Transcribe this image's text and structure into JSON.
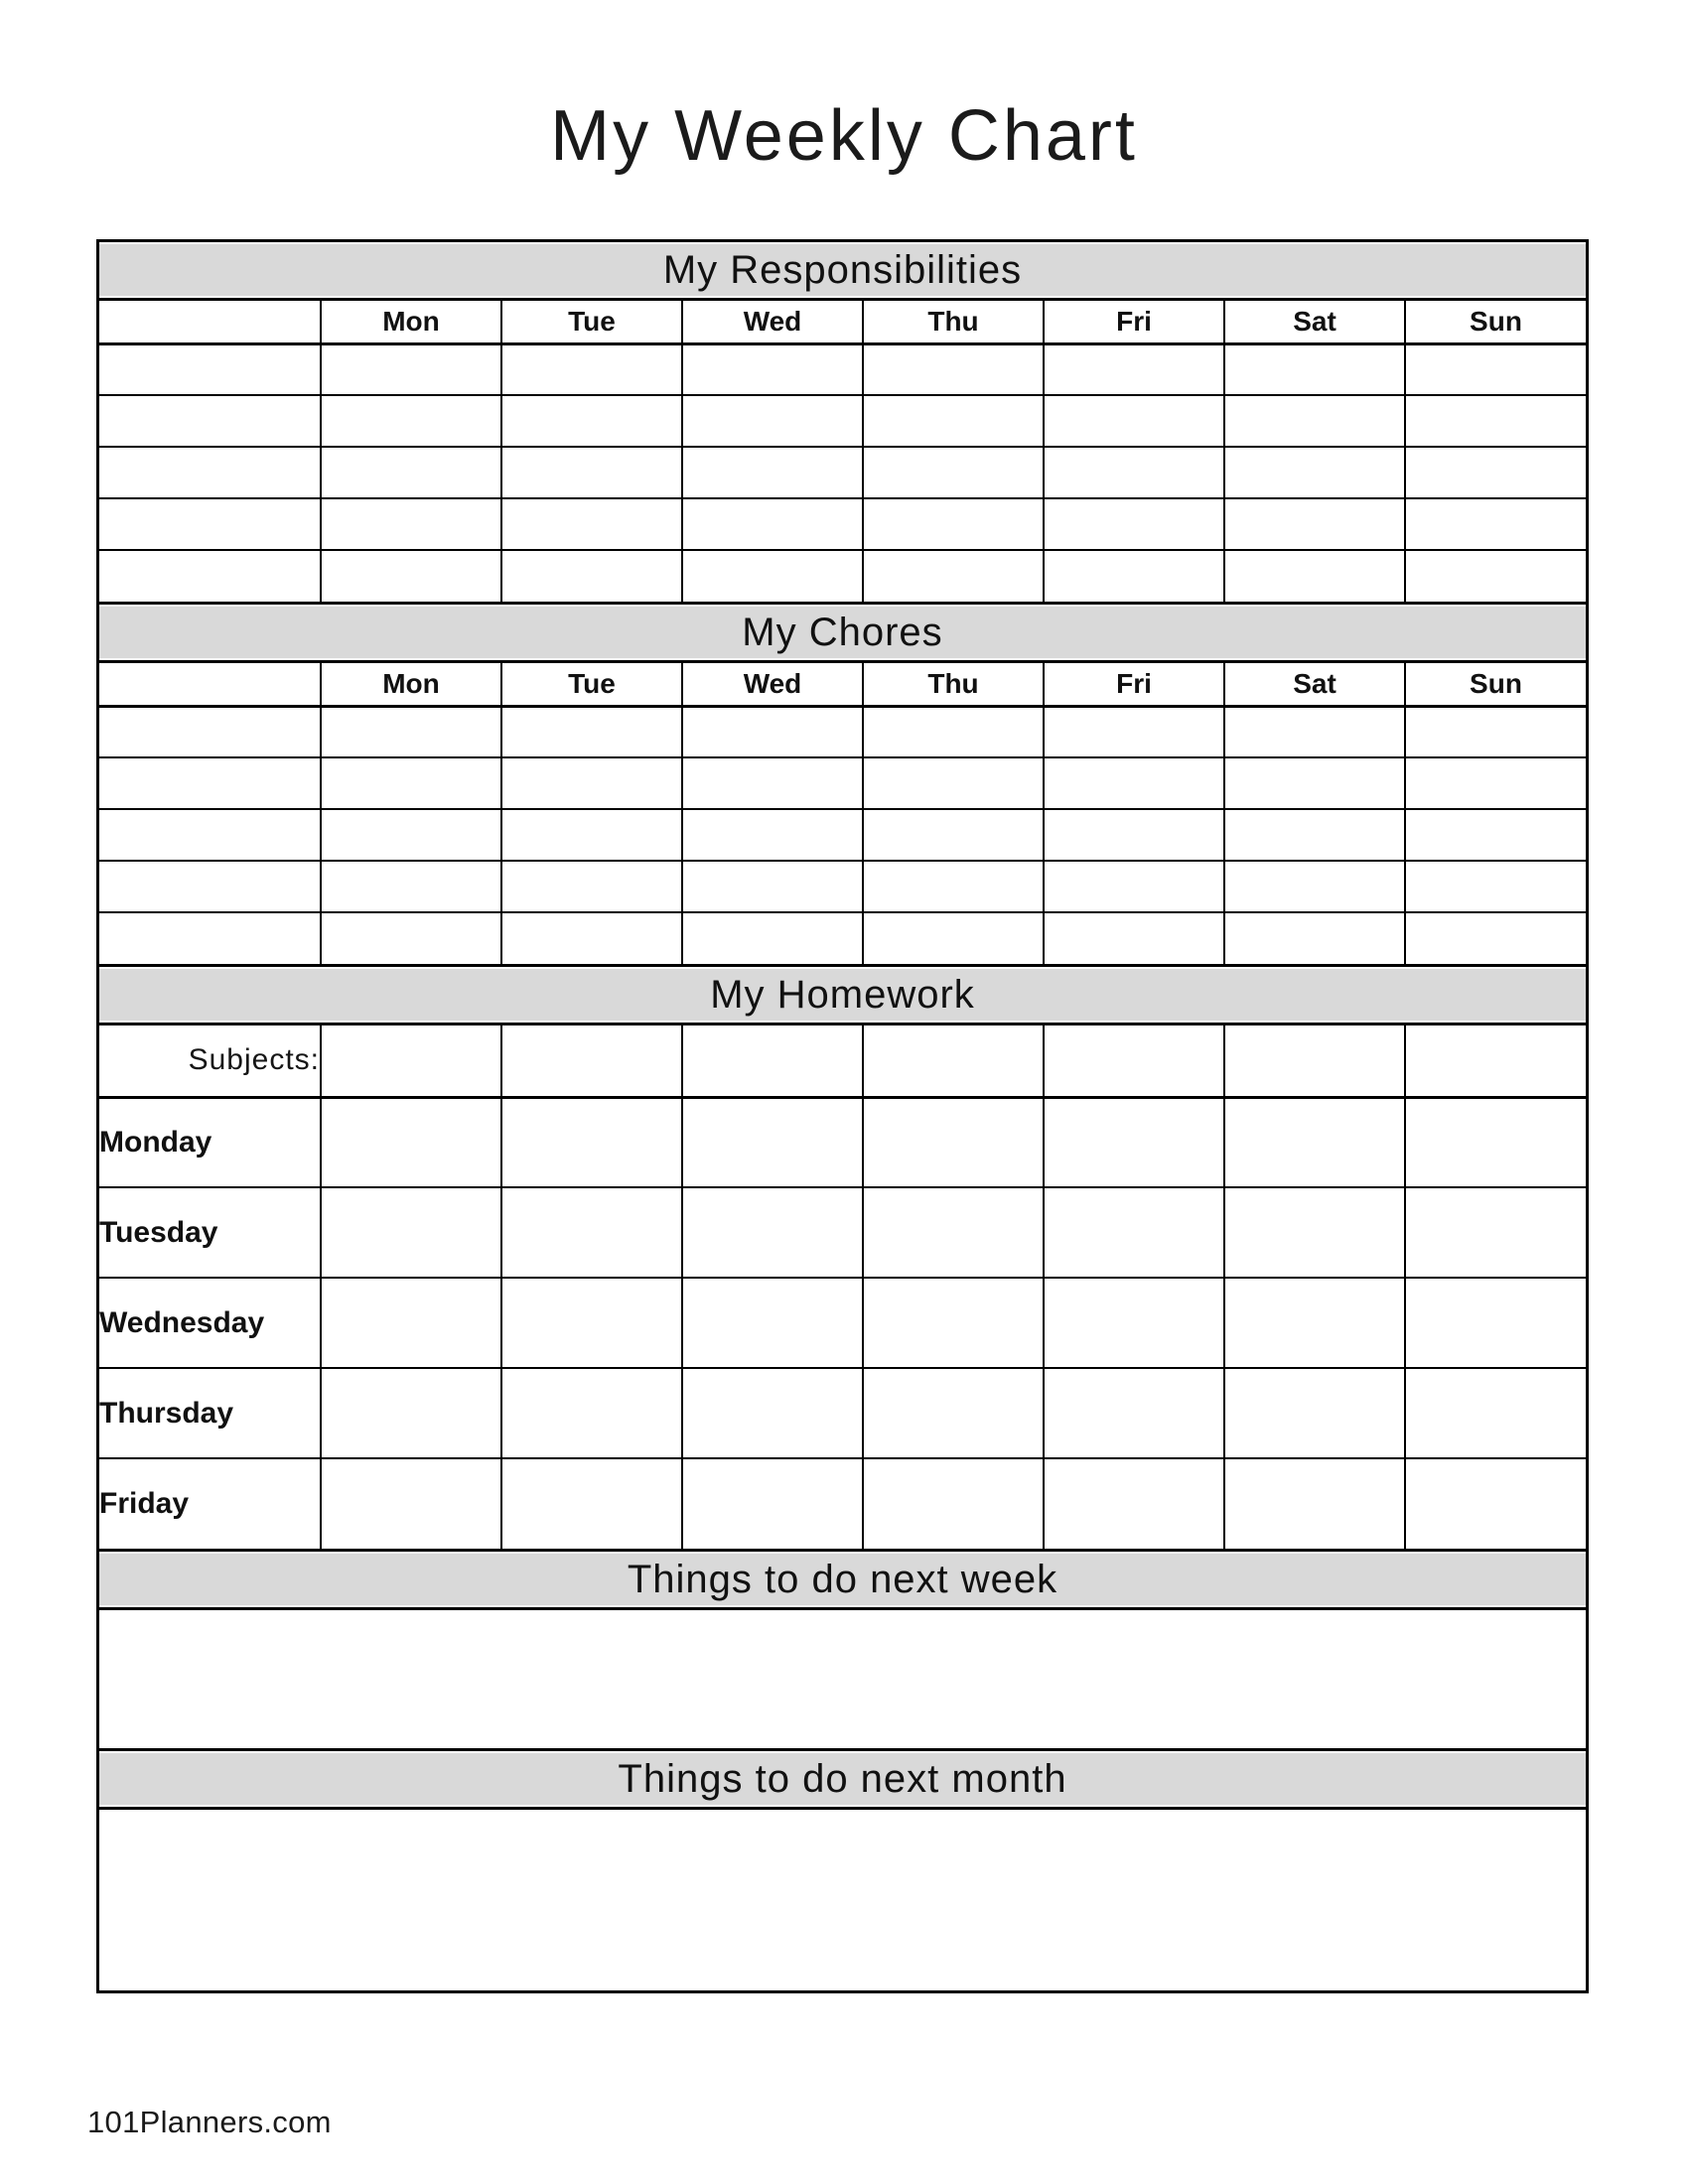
{
  "title": "My Weekly Chart",
  "footer": "101Planners.com",
  "days": [
    "Mon",
    "Tue",
    "Wed",
    "Thu",
    "Fri",
    "Sat",
    "Sun"
  ],
  "sections": {
    "responsibilities": {
      "heading": "My Responsibilities"
    },
    "chores": {
      "heading": "My Chores"
    },
    "homework": {
      "heading": "My Homework",
      "subjects_label": "Subjects:",
      "weekdays": [
        "Monday",
        "Tuesday",
        "Wednesday",
        "Thursday",
        "Friday"
      ]
    },
    "next_week": {
      "heading": "Things to do next week"
    },
    "next_month": {
      "heading": "Things to do next month"
    }
  },
  "colors": {
    "banner_bg": "#d9d9d9",
    "border": "#000000",
    "page_bg": "#ffffff"
  }
}
